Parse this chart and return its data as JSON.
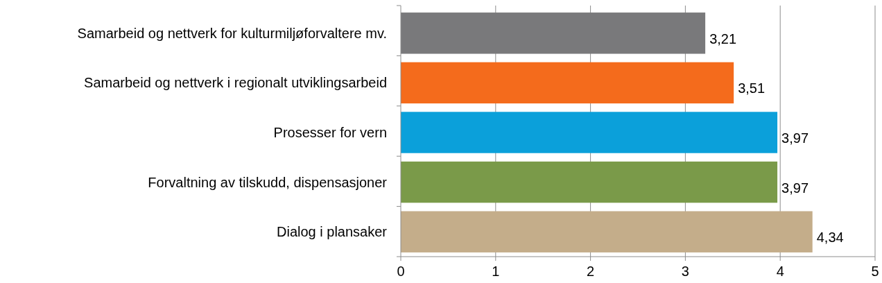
{
  "chart_data": {
    "type": "bar",
    "orientation": "horizontal",
    "categories": [
      "Samarbeid og nettverk for kulturmiljøforvaltere mv.",
      "Samarbeid og nettverk i regionalt utviklingsarbeid",
      "Prosesser for vern",
      "Forvaltning av tilskudd, dispensasjoner",
      "Dialog i plansaker"
    ],
    "values": [
      3.21,
      3.51,
      3.97,
      3.97,
      4.34
    ],
    "colors": [
      "#79797b",
      "#f46b1c",
      "#0ba0da",
      "#7a9a49",
      "#c4ad8a"
    ],
    "value_labels": [
      "3,21",
      "3,51",
      "3,97",
      "3,97",
      "4,34"
    ],
    "xlim": [
      0,
      5
    ],
    "xticks": [
      0,
      1,
      2,
      3,
      4,
      5
    ],
    "grid": "x"
  }
}
